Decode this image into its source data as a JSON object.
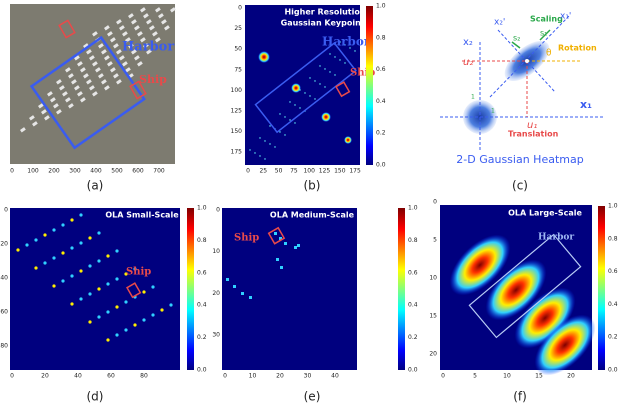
{
  "a": {
    "caption": "(a)",
    "harbor": "Harbor",
    "ship": "Ship",
    "xticks": [
      "0",
      "100",
      "200",
      "300",
      "400",
      "500",
      "600",
      "700"
    ]
  },
  "b": {
    "caption": "(b)",
    "title": [
      "Higher Resolution",
      "Gaussian Keypoints"
    ],
    "harbor": "Harbor",
    "ship": "Ship",
    "xticks": [
      "0",
      "25",
      "50",
      "75",
      "100",
      "125",
      "150",
      "175"
    ],
    "yticks": [
      "0",
      "25",
      "50",
      "75",
      "100",
      "125",
      "150",
      "175"
    ],
    "cbticks": [
      "0.0",
      "0.2",
      "0.4",
      "0.6",
      "0.8",
      "1.0"
    ]
  },
  "c": {
    "caption": "(c)",
    "x2p": "x₂'",
    "scaling": "Scaling",
    "x1p": "x₁'",
    "s2": "s₂",
    "s1": "s₁",
    "x2": "x₂",
    "u2": "u₂",
    "theta": "θ",
    "rotation": "Rotation",
    "u1": "u₁",
    "x1": "x₁",
    "translation": "Translation",
    "one_a": "1",
    "one_b": "1",
    "heatmap": "2-D Gaussian Heatmap"
  },
  "d": {
    "caption": "(d)",
    "title": "OLA Small-Scale",
    "ship": "Ship",
    "xticks": [
      "0",
      "20",
      "40",
      "60",
      "80"
    ],
    "yticks": [
      "0",
      "20",
      "40",
      "60",
      "80"
    ],
    "cbticks": [
      "0.0",
      "0.2",
      "0.4",
      "0.6",
      "0.8",
      "1.0"
    ]
  },
  "e": {
    "caption": "(e)",
    "title": "OLA Medium-Scale",
    "ship": "Ship",
    "xticks": [
      "0",
      "10",
      "20",
      "30",
      "40"
    ],
    "yticks": [
      "0",
      "10",
      "20",
      "30"
    ],
    "cbticks": [
      "0.0",
      "0.2",
      "0.4",
      "0.6",
      "0.8",
      "1.0"
    ]
  },
  "f": {
    "caption": "(f)",
    "title": "OLA Large-Scale",
    "harbor": "Harbor",
    "xticks": [
      "0",
      "5",
      "10",
      "15",
      "20"
    ],
    "yticks": [
      "0",
      "5",
      "10",
      "15",
      "20"
    ],
    "cbticks": [
      "0.0",
      "0.2",
      "0.4",
      "0.6",
      "0.8",
      "1.0"
    ]
  }
}
